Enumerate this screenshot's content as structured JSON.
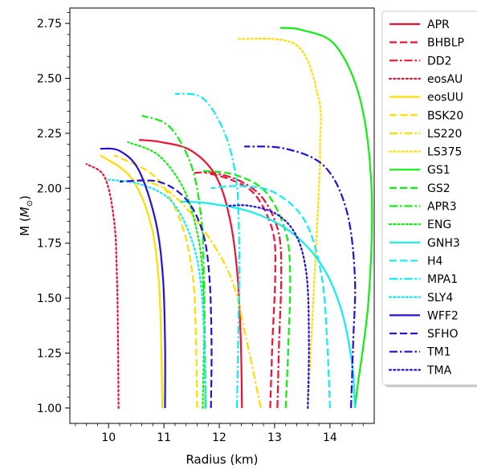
{
  "chart_data": {
    "type": "line",
    "title": "",
    "xlabel": "Radius (km)",
    "ylabel_prefix": "M (",
    "ylabel_symbol": "M",
    "ylabel_sub": "⊙",
    "ylabel_suffix": ")",
    "xlim": [
      9.3,
      14.8
    ],
    "ylim": [
      0.93,
      2.82
    ],
    "xticks": [
      10,
      11,
      12,
      13,
      14
    ],
    "xtick_labels": [
      "10",
      "11",
      "12",
      "13",
      "14"
    ],
    "yticks": [
      1.0,
      1.25,
      1.5,
      1.75,
      2.0,
      2.25,
      2.5,
      2.75
    ],
    "ytick_labels": [
      "1.00",
      "1.25",
      "1.50",
      "1.75",
      "2.00",
      "2.25",
      "2.50",
      "2.75"
    ],
    "legend_position": "right",
    "series": [
      {
        "name": "APR",
        "color": "#ee1133",
        "dash": "solid",
        "points": [
          [
            12.41,
            1.0
          ],
          [
            12.39,
            1.3
          ],
          [
            12.33,
            1.6
          ],
          [
            12.2,
            1.85
          ],
          [
            11.95,
            2.05
          ],
          [
            11.5,
            2.17
          ],
          [
            10.95,
            2.21
          ],
          [
            10.55,
            2.22
          ]
        ]
      },
      {
        "name": "BHBLP",
        "color": "#ee1133",
        "dash": "dash",
        "points": [
          [
            12.92,
            1.0
          ],
          [
            12.96,
            1.3
          ],
          [
            13.01,
            1.6
          ],
          [
            12.97,
            1.8
          ],
          [
            12.65,
            1.97
          ],
          [
            12.2,
            2.04
          ],
          [
            11.75,
            2.07
          ]
        ]
      },
      {
        "name": "DD2",
        "color": "#ee1133",
        "dash": "dashdot",
        "points": [
          [
            13.05,
            1.0
          ],
          [
            13.08,
            1.3
          ],
          [
            13.12,
            1.6
          ],
          [
            13.07,
            1.8
          ],
          [
            12.8,
            1.95
          ],
          [
            12.4,
            2.03
          ],
          [
            11.9,
            2.07
          ],
          [
            11.55,
            2.07
          ]
        ]
      },
      {
        "name": "eosAU",
        "color": "#ee1133",
        "dash": "dot",
        "points": [
          [
            10.18,
            1.0
          ],
          [
            10.17,
            1.3
          ],
          [
            10.15,
            1.6
          ],
          [
            10.1,
            1.85
          ],
          [
            9.93,
            2.05
          ],
          [
            9.6,
            2.11
          ]
        ]
      },
      {
        "name": "eosUU",
        "color": "#ffdd00",
        "dash": "solid",
        "points": [
          [
            10.97,
            1.0
          ],
          [
            10.95,
            1.3
          ],
          [
            10.9,
            1.6
          ],
          [
            10.75,
            1.85
          ],
          [
            10.4,
            2.05
          ],
          [
            9.85,
            2.15
          ]
        ]
      },
      {
        "name": "BSK20",
        "color": "#ffdd00",
        "dash": "dash",
        "points": [
          [
            11.6,
            1.0
          ],
          [
            11.58,
            1.3
          ],
          [
            11.52,
            1.6
          ],
          [
            11.3,
            1.85
          ],
          [
            10.85,
            2.05
          ],
          [
            10.1,
            2.15
          ]
        ]
      },
      {
        "name": "LS220",
        "color": "#ffdd00",
        "dash": "dashdot",
        "points": [
          [
            12.75,
            1.0
          ],
          [
            12.5,
            1.3
          ],
          [
            12.2,
            1.6
          ],
          [
            11.6,
            1.85
          ],
          [
            11.0,
            2.0
          ],
          [
            10.4,
            2.04
          ]
        ]
      },
      {
        "name": "LS375",
        "color": "#ffdd00",
        "dash": "dot",
        "points": [
          [
            13.6,
            1.0
          ],
          [
            13.7,
            1.5
          ],
          [
            13.8,
            2.0
          ],
          [
            13.82,
            2.2
          ],
          [
            13.8,
            2.4
          ],
          [
            13.4,
            2.65
          ],
          [
            12.35,
            2.68
          ]
        ]
      },
      {
        "name": "GS1",
        "color": "#11ee11",
        "dash": "solid",
        "points": [
          [
            14.45,
            1.0
          ],
          [
            14.5,
            1.1
          ],
          [
            14.7,
            1.5
          ],
          [
            14.75,
            2.0
          ],
          [
            14.55,
            2.4
          ],
          [
            14.1,
            2.65
          ],
          [
            13.5,
            2.72
          ],
          [
            13.1,
            2.73
          ]
        ]
      },
      {
        "name": "GS2",
        "color": "#11ee11",
        "dash": "dash",
        "points": [
          [
            13.2,
            1.0
          ],
          [
            13.25,
            1.3
          ],
          [
            13.28,
            1.6
          ],
          [
            13.2,
            1.8
          ],
          [
            12.85,
            1.98
          ],
          [
            12.3,
            2.06
          ],
          [
            11.65,
            2.08
          ]
        ]
      },
      {
        "name": "APR3",
        "color": "#11ee11",
        "dash": "dashdot",
        "points": [
          [
            11.75,
            1.0
          ],
          [
            11.74,
            1.3
          ],
          [
            11.72,
            1.6
          ],
          [
            11.68,
            1.85
          ],
          [
            11.5,
            2.1
          ],
          [
            11.1,
            2.28
          ],
          [
            10.6,
            2.33
          ]
        ]
      },
      {
        "name": "ENG",
        "color": "#11ee11",
        "dash": "dot",
        "points": [
          [
            11.7,
            1.0
          ],
          [
            11.72,
            1.3
          ],
          [
            11.7,
            1.6
          ],
          [
            11.6,
            1.8
          ],
          [
            11.35,
            2.0
          ],
          [
            10.9,
            2.15
          ],
          [
            10.35,
            2.21
          ]
        ]
      },
      {
        "name": "GNH3",
        "color": "#11eeee",
        "dash": "solid",
        "points": [
          [
            14.45,
            1.0
          ],
          [
            14.4,
            1.2
          ],
          [
            14.2,
            1.45
          ],
          [
            13.85,
            1.65
          ],
          [
            13.3,
            1.8
          ],
          [
            12.6,
            1.89
          ],
          [
            11.85,
            1.93
          ],
          [
            11.3,
            1.94
          ]
        ]
      },
      {
        "name": "H4",
        "color": "#11eeee",
        "dash": "dash",
        "points": [
          [
            14.0,
            1.0
          ],
          [
            13.95,
            1.3
          ],
          [
            13.85,
            1.6
          ],
          [
            13.55,
            1.85
          ],
          [
            13.0,
            1.98
          ],
          [
            12.4,
            2.01
          ],
          [
            11.85,
            2.0
          ]
        ]
      },
      {
        "name": "MPA1",
        "color": "#11eeee",
        "dash": "dashdot",
        "points": [
          [
            12.32,
            1.0
          ],
          [
            12.34,
            1.3
          ],
          [
            12.36,
            1.6
          ],
          [
            12.35,
            1.85
          ],
          [
            12.3,
            2.05
          ],
          [
            12.1,
            2.25
          ],
          [
            11.7,
            2.41
          ],
          [
            11.2,
            2.43
          ]
        ]
      },
      {
        "name": "SLY4",
        "color": "#11eeee",
        "dash": "dot",
        "points": [
          [
            11.75,
            1.0
          ],
          [
            11.73,
            1.3
          ],
          [
            11.65,
            1.6
          ],
          [
            11.45,
            1.8
          ],
          [
            11.1,
            1.95
          ],
          [
            10.55,
            2.02
          ],
          [
            9.95,
            2.04
          ]
        ]
      },
      {
        "name": "WFF2",
        "color": "#2211dd",
        "dash": "solid",
        "points": [
          [
            11.02,
            1.0
          ],
          [
            11.02,
            1.3
          ],
          [
            10.98,
            1.6
          ],
          [
            10.85,
            1.85
          ],
          [
            10.55,
            2.08
          ],
          [
            10.2,
            2.17
          ],
          [
            9.85,
            2.18
          ]
        ]
      },
      {
        "name": "SFHO",
        "color": "#2211dd",
        "dash": "dash",
        "points": [
          [
            11.85,
            1.0
          ],
          [
            11.86,
            1.3
          ],
          [
            11.82,
            1.6
          ],
          [
            11.7,
            1.8
          ],
          [
            11.4,
            1.95
          ],
          [
            10.9,
            2.03
          ],
          [
            10.2,
            2.03
          ]
        ]
      },
      {
        "name": "TM1",
        "color": "#2211dd",
        "dash": "dashdot",
        "points": [
          [
            14.38,
            1.0
          ],
          [
            14.42,
            1.3
          ],
          [
            14.45,
            1.6
          ],
          [
            14.3,
            1.9
          ],
          [
            13.9,
            2.1
          ],
          [
            13.2,
            2.18
          ],
          [
            12.45,
            2.19
          ]
        ]
      },
      {
        "name": "TMA",
        "color": "#2211dd",
        "dash": "dot",
        "points": [
          [
            13.6,
            1.0
          ],
          [
            13.62,
            1.3
          ],
          [
            13.58,
            1.6
          ],
          [
            13.4,
            1.78
          ],
          [
            13.05,
            1.88
          ],
          [
            12.55,
            1.92
          ],
          [
            12.15,
            1.92
          ]
        ]
      }
    ]
  }
}
